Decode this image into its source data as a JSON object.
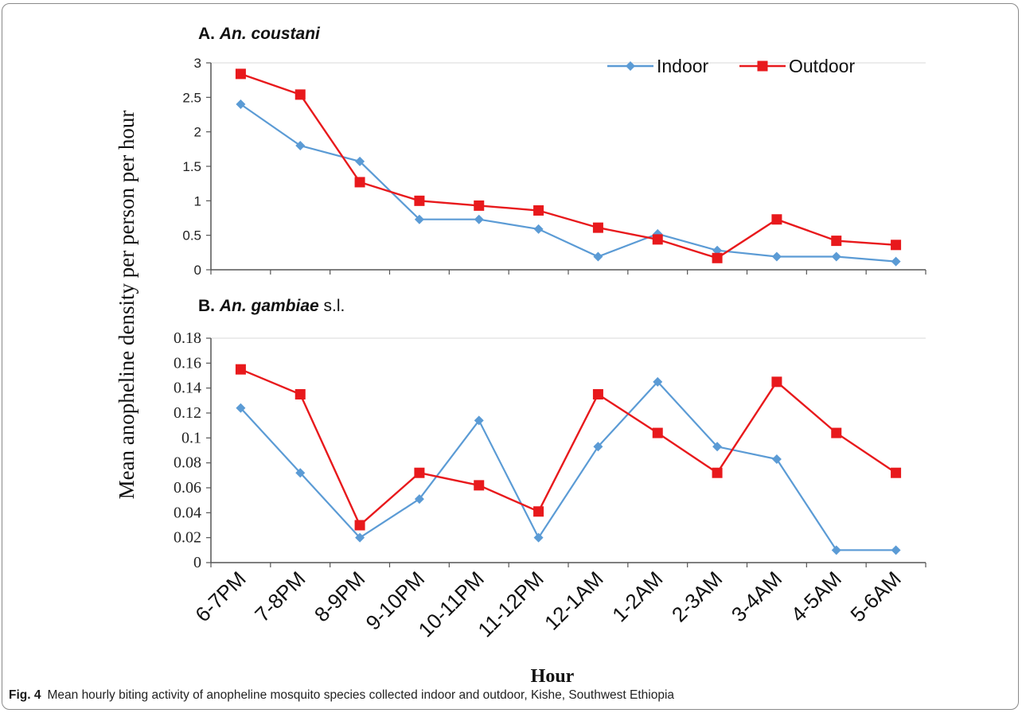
{
  "caption": {
    "label": "Fig. 4",
    "text": "Mean hourly biting activity of anopheline mosquito species collected indoor and outdoor, Kishe, Southwest Ethiopia"
  },
  "colors": {
    "indoor": "#5b9bd5",
    "outdoor": "#e8191c",
    "axis": "#555555"
  },
  "chart_data": [
    {
      "type": "line",
      "panel_label": "A.",
      "species": "An. coustani",
      "categories": [
        "6-7PM",
        "7-8PM",
        "8-9PM",
        "9-10PM",
        "10-11PM",
        "11-12PM",
        "12-1AM",
        "1-2AM",
        "2-3AM",
        "3-4AM",
        "4-5AM",
        "5-6AM"
      ],
      "series": [
        {
          "name": "Indoor",
          "values": [
            2.4,
            1.8,
            1.57,
            0.73,
            0.73,
            0.59,
            0.19,
            0.52,
            0.28,
            0.19,
            0.19,
            0.12
          ]
        },
        {
          "name": "Outdoor",
          "values": [
            2.84,
            2.54,
            1.27,
            1.0,
            0.93,
            0.86,
            0.61,
            0.44,
            0.17,
            0.73,
            0.42,
            0.36
          ]
        }
      ],
      "ylim": [
        0,
        3
      ],
      "yticks": [
        "0",
        "0.5",
        "1",
        "1.5",
        "2",
        "2.5",
        "3"
      ],
      "legend": "top-right"
    },
    {
      "type": "line",
      "panel_label": "B.",
      "species": "An. gambiae",
      "species_suffix": "s.l.",
      "categories": [
        "6-7PM",
        "7-8PM",
        "8-9PM",
        "9-10PM",
        "10-11PM",
        "11-12PM",
        "12-1AM",
        "1-2AM",
        "2-3AM",
        "3-4AM",
        "4-5AM",
        "5-6AM"
      ],
      "series": [
        {
          "name": "Indoor",
          "values": [
            0.124,
            0.072,
            0.02,
            0.051,
            0.114,
            0.02,
            0.093,
            0.145,
            0.093,
            0.083,
            0.01,
            0.01
          ]
        },
        {
          "name": "Outdoor",
          "values": [
            0.155,
            0.135,
            0.03,
            0.072,
            0.062,
            0.041,
            0.135,
            0.104,
            0.072,
            0.145,
            0.104,
            0.072
          ]
        }
      ],
      "ylim": [
        0,
        0.18
      ],
      "yticks": [
        "0",
        "0.02",
        "0.04",
        "0.06",
        "0.08",
        "0.1",
        "0.12",
        "0.14",
        "0.16",
        "0.18"
      ],
      "xlabel": "Hour"
    }
  ],
  "ylabel": "Mean anopheline density per person per hour"
}
